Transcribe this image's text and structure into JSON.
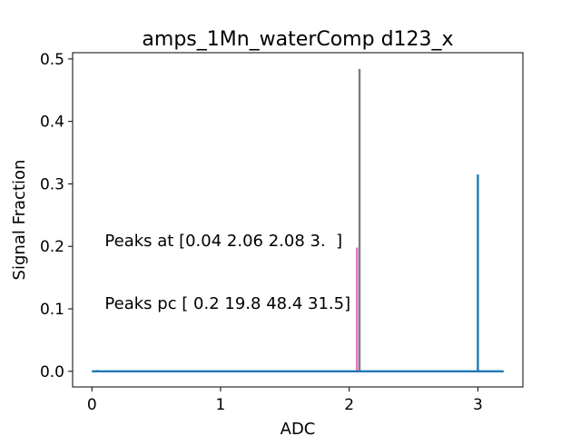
{
  "chart_data": {
    "type": "line",
    "title": "amps_1Mn_waterComp d123_x",
    "xlabel": "ADC",
    "ylabel": "Signal Fraction",
    "xlim": [
      -0.15,
      3.35
    ],
    "ylim": [
      -0.025,
      0.51
    ],
    "x_ticks": [
      0,
      1,
      2,
      3
    ],
    "x_tick_labels": [
      "0",
      "1",
      "2",
      "3"
    ],
    "y_ticks": [
      0.0,
      0.1,
      0.2,
      0.3,
      0.4,
      0.5
    ],
    "y_tick_labels": [
      "0.0",
      "0.1",
      "0.2",
      "0.3",
      "0.4",
      "0.5"
    ],
    "grid": false,
    "baseline": {
      "x_range": [
        0.0,
        3.2
      ],
      "y": 0.0,
      "color": "#1f77b4"
    },
    "series": [
      {
        "x": 0.04,
        "value": 0.002,
        "color": "#1f77b4"
      },
      {
        "x": 2.06,
        "value": 0.198,
        "color": "#e377c2"
      },
      {
        "x": 2.08,
        "value": 0.484,
        "color": "#7f7f7f"
      },
      {
        "x": 3.0,
        "value": 0.315,
        "color": "#1f77b4"
      }
    ],
    "annotations": [
      {
        "text": "Peaks at [0.04 2.06 2.08 3.  ]",
        "x": 0.1,
        "y": 0.2
      },
      {
        "text": "Peaks pc [ 0.2 19.8 48.4 31.5]",
        "x": 0.1,
        "y": 0.1
      }
    ]
  }
}
